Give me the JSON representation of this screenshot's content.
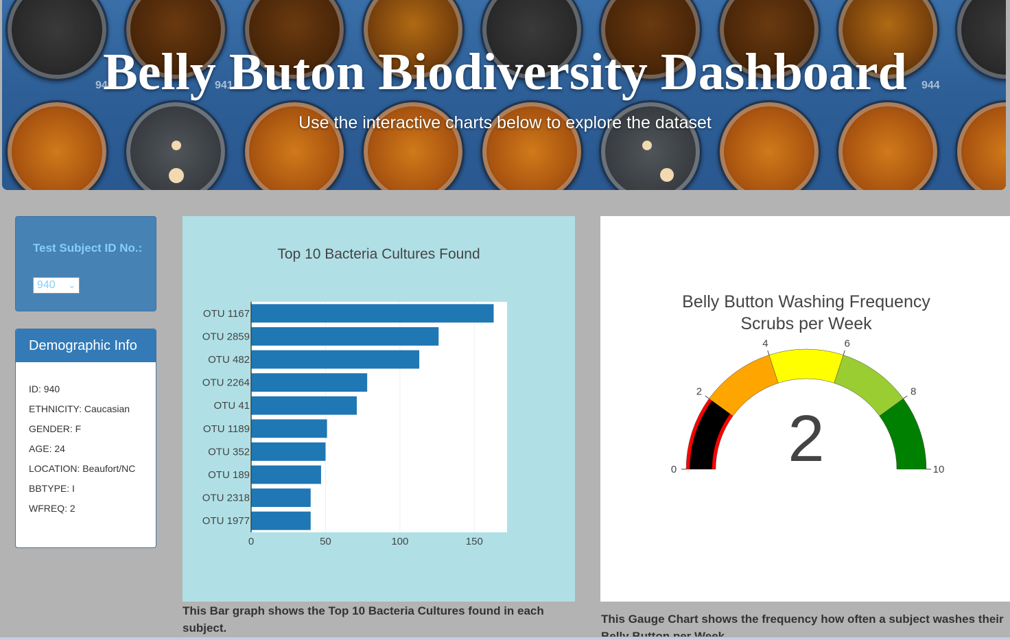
{
  "header": {
    "title": "Belly Buton Biodiversity Dashboard",
    "subtitle": "Use the interactive charts below to explore the dataset",
    "plate_numbers": [
      "940",
      "941",
      "944"
    ]
  },
  "selector": {
    "label": "Test Subject ID No.:",
    "selected": "940"
  },
  "demographics": {
    "heading": "Demographic Info",
    "rows": [
      "ID: 940",
      "ETHNICITY: Caucasian",
      "GENDER: F",
      "AGE: 24",
      "LOCATION: Beaufort/NC",
      "BBTYPE: I",
      "WFREQ: 2"
    ]
  },
  "bar_section": {
    "caption": "This Bar graph shows the Top 10 Bacteria Cultures found in each subject."
  },
  "gauge_section": {
    "caption": "This Gauge Chart shows the frequency how often a subject washes their Belly Button per Week"
  },
  "colors": {
    "bar": "#1f77b4",
    "bar_card_bg": "#b0e0e6",
    "panel_blue": "#4682b4",
    "heading_blue": "#337ab7",
    "label_light_blue": "#87cefa",
    "page_bg": "#b3b3b3"
  },
  "chart_data": [
    {
      "type": "bar",
      "orientation": "horizontal",
      "title": "Top 10 Bacteria Cultures Found",
      "categories": [
        "OTU 1167",
        "OTU 2859",
        "OTU 482",
        "OTU 2264",
        "OTU 41",
        "OTU 1189",
        "OTU 352",
        "OTU 189",
        "OTU 2318",
        "OTU 1977"
      ],
      "values": [
        163,
        126,
        113,
        78,
        71,
        51,
        50,
        47,
        40,
        40
      ],
      "xlim": [
        0,
        172
      ],
      "xticks": [
        0,
        50,
        100,
        150
      ],
      "grid": true
    },
    {
      "type": "gauge",
      "title": "Belly Button Washing Frequency",
      "subtitle": "Scrubs per Week",
      "value": 2,
      "range": [
        0,
        10
      ],
      "ticks": [
        0,
        2,
        4,
        6,
        8,
        10
      ],
      "steps": [
        {
          "range": [
            0,
            2
          ],
          "color": "#ff0000"
        },
        {
          "range": [
            2,
            4
          ],
          "color": "#ffa500"
        },
        {
          "range": [
            4,
            6
          ],
          "color": "#ffff00"
        },
        {
          "range": [
            6,
            8
          ],
          "color": "#9acd32"
        },
        {
          "range": [
            8,
            10
          ],
          "color": "#008000"
        }
      ],
      "bar_color": "#000000"
    }
  ]
}
